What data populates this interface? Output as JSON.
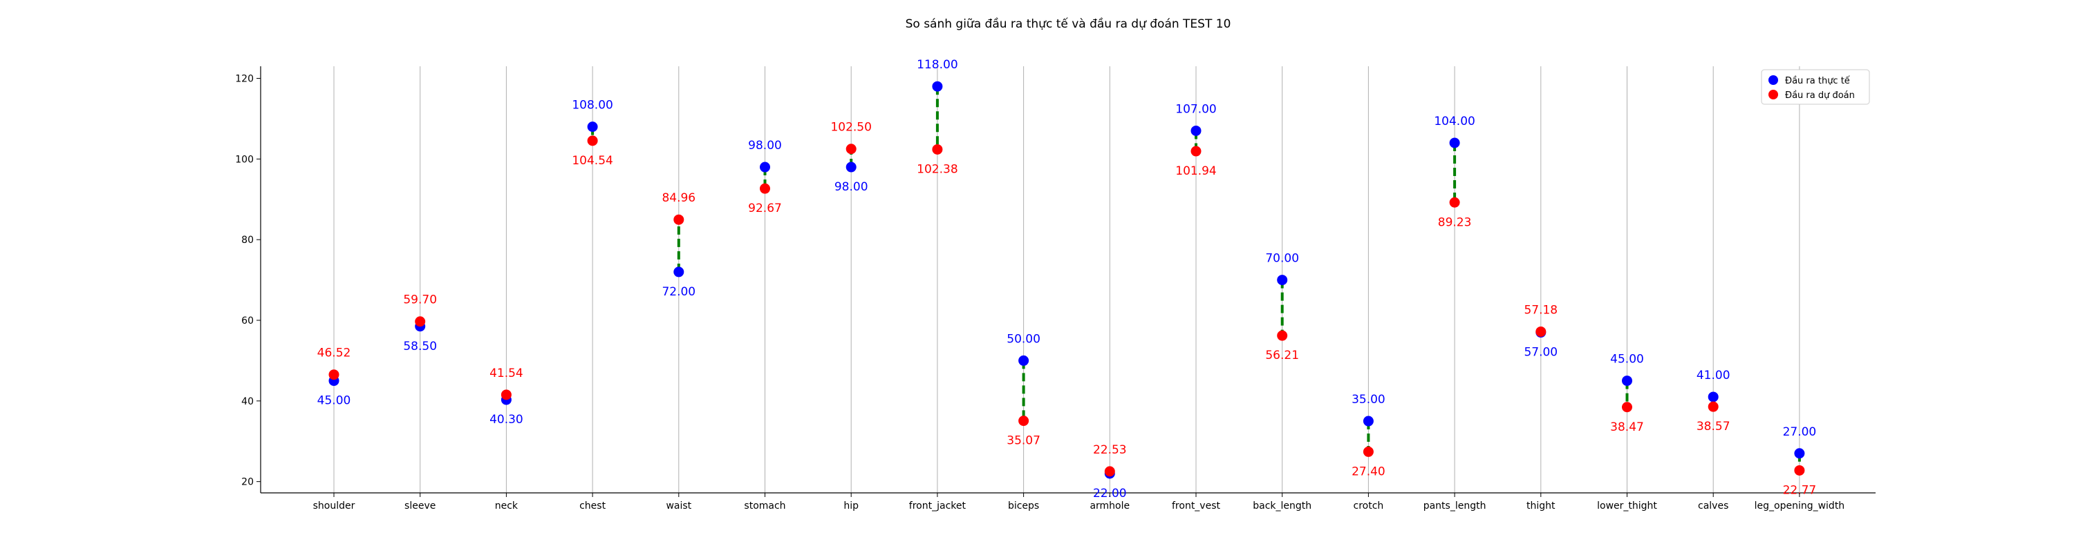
{
  "chart_data": {
    "type": "scatter",
    "title": "So sánh giữa đầu ra thực tế và đầu ra dự đoán TEST 10",
    "xlabel": "",
    "ylabel": "",
    "categories": [
      "shoulder",
      "sleeve",
      "neck",
      "chest",
      "waist",
      "stomach",
      "hip",
      "front_jacket",
      "biceps",
      "armhole",
      "front_vest",
      "back_length",
      "crotch",
      "pants_length",
      "thight",
      "lower_thight",
      "calves",
      "leg_opening_width"
    ],
    "ylim": [
      17.2,
      123.0
    ],
    "yticks": [
      20,
      40,
      60,
      80,
      100,
      120
    ],
    "grid": "vertical",
    "legend_position": "top-right",
    "series": [
      {
        "name": "Đầu ra thực tế",
        "color": "#0000ff",
        "values": [
          45.0,
          58.5,
          40.3,
          108.0,
          72.0,
          98.0,
          98.0,
          118.0,
          50.0,
          22.0,
          107.0,
          70.0,
          35.0,
          104.0,
          57.0,
          45.0,
          41.0,
          27.0
        ],
        "labels": [
          "45.00",
          "58.50",
          "40.30",
          "108.00",
          "72.00",
          "98.00",
          "98.00",
          "118.00",
          "50.00",
          "22.00",
          "107.00",
          "70.00",
          "35.00",
          "104.00",
          "57.00",
          "45.00",
          "41.00",
          "27.00"
        ]
      },
      {
        "name": "Đầu ra dự đoán",
        "color": "#ff0000",
        "values": [
          46.52,
          59.7,
          41.54,
          104.54,
          84.96,
          92.67,
          102.5,
          102.38,
          35.07,
          22.53,
          101.94,
          56.21,
          27.4,
          89.23,
          57.18,
          38.47,
          38.57,
          22.77
        ],
        "labels": [
          "46.52",
          "59.70",
          "41.54",
          "104.54",
          "84.96",
          "92.67",
          "102.50",
          "102.38",
          "35.07",
          "22.53",
          "101.94",
          "56.21",
          "27.40",
          "89.23",
          "57.18",
          "38.47",
          "38.57",
          "22.77"
        ]
      }
    ],
    "connector_color": "#008000"
  }
}
